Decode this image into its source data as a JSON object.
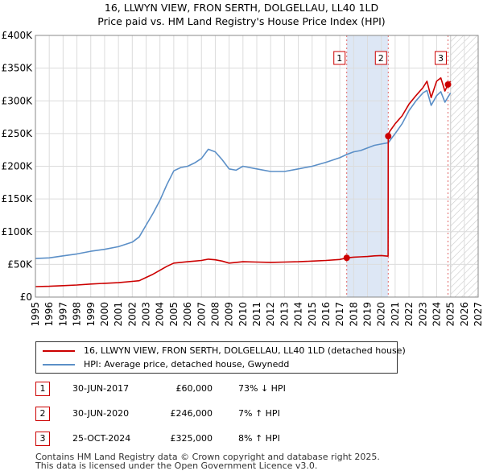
{
  "chart_data": {
    "type": "line",
    "title": "16, LLWYN VIEW, FRON SERTH, DOLGELLAU, LL40 1LD",
    "subtitle": "Price paid vs. HM Land Registry's House Price Index (HPI)",
    "xlabel": "",
    "ylabel": "",
    "xlim": [
      1995,
      2027
    ],
    "ylim": [
      0,
      400000
    ],
    "y_ticks": [
      0,
      50000,
      100000,
      150000,
      200000,
      250000,
      300000,
      350000,
      400000
    ],
    "y_tick_labels": [
      "£0",
      "£50K",
      "£100K",
      "£150K",
      "£200K",
      "£250K",
      "£300K",
      "£350K",
      "£400K"
    ],
    "x_ticks": [
      1995,
      1996,
      1997,
      1998,
      1999,
      2000,
      2001,
      2002,
      2003,
      2004,
      2005,
      2006,
      2007,
      2008,
      2009,
      2010,
      2011,
      2012,
      2013,
      2014,
      2015,
      2016,
      2017,
      2018,
      2019,
      2020,
      2021,
      2022,
      2023,
      2024,
      2025,
      2026,
      2027
    ],
    "x_tick_labels": [
      "1995",
      "1996",
      "1997",
      "1998",
      "1999",
      "2000",
      "2001",
      "2002",
      "2003",
      "2004",
      "2005",
      "2006",
      "2007",
      "2008",
      "2009",
      "2010",
      "2011",
      "2012",
      "2013",
      "2014",
      "2015",
      "2016",
      "2017",
      "2018",
      "2019",
      "2020",
      "2021",
      "2022",
      "2023",
      "2024",
      "2025",
      "2026",
      "2027"
    ],
    "grid": true,
    "future_hatch_from": 2025.0,
    "shaded_span": [
      2017.5,
      2020.5
    ],
    "series": [
      {
        "name": "16, LLWYN VIEW, FRON SERTH, DOLGELLAU, LL40 1LD (detached house)",
        "color": "#cc0000",
        "x": [
          1995.0,
          1996.0,
          1997.0,
          1998.0,
          1999.0,
          2000.0,
          2001.0,
          2002.0,
          2002.5,
          2003.0,
          2003.5,
          2004.0,
          2004.5,
          2005.0,
          2006.0,
          2006.5,
          2007.0,
          2007.5,
          2008.0,
          2008.5,
          2009.0,
          2009.5,
          2010.0,
          2011.0,
          2012.0,
          2013.0,
          2014.0,
          2015.0,
          2016.0,
          2017.0,
          2017.5,
          2017.51,
          2018.0,
          2018.5,
          2019.0,
          2019.5,
          2020.0,
          2020.49,
          2020.5,
          2020.6,
          2021.0,
          2021.5,
          2022.0,
          2022.5,
          2023.0,
          2023.3,
          2023.6,
          2024.0,
          2024.3,
          2024.6,
          2024.82,
          2025.0
        ],
        "y": [
          16000,
          16500,
          17500,
          18500,
          20000,
          21000,
          22000,
          24000,
          25000,
          30000,
          35000,
          41000,
          47000,
          52000,
          54000,
          55000,
          56000,
          58000,
          57000,
          55000,
          52000,
          53000,
          54000,
          53500,
          53000,
          53500,
          54000,
          55000,
          56000,
          57500,
          60000,
          60000,
          61000,
          61500,
          62000,
          63000,
          63500,
          62500,
          246000,
          253000,
          265000,
          277000,
          295000,
          308000,
          320000,
          330000,
          305000,
          330000,
          335000,
          315000,
          325000,
          330000
        ]
      },
      {
        "name": "HPI: Average price, detached house, Gwynedd",
        "color": "#5b8fc7",
        "x": [
          1995.0,
          1996.0,
          1997.0,
          1998.0,
          1999.0,
          2000.0,
          2001.0,
          2002.0,
          2002.5,
          2003.0,
          2003.5,
          2004.0,
          2004.5,
          2005.0,
          2005.5,
          2006.0,
          2006.5,
          2007.0,
          2007.5,
          2008.0,
          2008.5,
          2009.0,
          2009.5,
          2010.0,
          2011.0,
          2012.0,
          2013.0,
          2014.0,
          2015.0,
          2016.0,
          2017.0,
          2017.5,
          2018.0,
          2018.5,
          2019.0,
          2019.5,
          2020.0,
          2020.5,
          2021.0,
          2021.5,
          2022.0,
          2022.5,
          2023.0,
          2023.3,
          2023.6,
          2024.0,
          2024.3,
          2024.6,
          2025.0
        ],
        "y": [
          59000,
          60000,
          63000,
          66000,
          70000,
          73000,
          77000,
          84000,
          92000,
          110000,
          128000,
          148000,
          172000,
          193000,
          198000,
          200000,
          205000,
          212000,
          226000,
          222000,
          210000,
          196000,
          194000,
          200000,
          196000,
          192000,
          192000,
          196000,
          200000,
          206000,
          213000,
          218000,
          222000,
          224000,
          228000,
          232000,
          234000,
          236000,
          250000,
          265000,
          285000,
          300000,
          312000,
          316000,
          293000,
          308000,
          314000,
          298000,
          312000
        ]
      }
    ],
    "sales": [
      {
        "label": "1",
        "x": 2017.5,
        "y": 60000
      },
      {
        "label": "2",
        "x": 2020.5,
        "y": 246000
      },
      {
        "label": "3",
        "x": 2024.82,
        "y": 325000
      }
    ]
  },
  "legend": {
    "items": [
      {
        "label": "16, LLWYN VIEW, FRON SERTH, DOLGELLAU, LL40 1LD (detached house)",
        "color": "#cc0000"
      },
      {
        "label": "HPI: Average price, detached house, Gwynedd",
        "color": "#5b8fc7"
      }
    ]
  },
  "table": {
    "rows": [
      {
        "num": "1",
        "date": "30-JUN-2017",
        "price": "£60,000",
        "hpi": "73% ↓ HPI"
      },
      {
        "num": "2",
        "date": "30-JUN-2020",
        "price": "£246,000",
        "hpi": "7% ↑ HPI"
      },
      {
        "num": "3",
        "date": "25-OCT-2024",
        "price": "£325,000",
        "hpi": "8% ↑ HPI"
      }
    ]
  },
  "footer": {
    "line1": "Contains HM Land Registry data © Crown copyright and database right 2025.",
    "line2": "This data is licensed under the Open Government Licence v3.0."
  }
}
